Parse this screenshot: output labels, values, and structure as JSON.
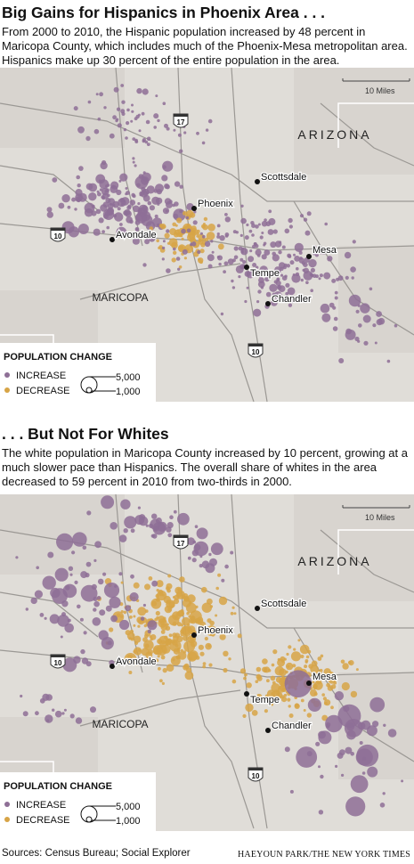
{
  "sections": [
    {
      "title": "Big Gains for Hispanics in Phoenix Area . . .",
      "description": "From 2000 to 2010, the Hispanic population increased by 48 percent in Maricopa County, which includes much of the Phoenix-Mesa metropolitan area. Hispanics make up 30 percent of the entire population in the area.",
      "map": {
        "scale_label": "10 Miles",
        "region_label": "ARIZONA",
        "county_label": "MARICOPA",
        "cities": [
          "Scottsdale",
          "Phoenix",
          "Avondale",
          "Mesa",
          "Tempe",
          "Chandler"
        ],
        "highways": [
          "17",
          "10",
          "10"
        ],
        "legend": {
          "title": "POPULATION CHANGE",
          "items": [
            "INCREASE",
            "DECREASE"
          ],
          "sizes": [
            "5,000",
            "1,000"
          ]
        }
      }
    },
    {
      "title": ". . . But Not For Whites",
      "description": "The white population in Maricopa County increased by 10 percent, growing at a much slower pace than Hispanics. The overall share of whites in the area decreased to 59 percent in 2010 from two-thirds in 2000.",
      "map": {
        "scale_label": "10 Miles",
        "region_label": "ARIZONA",
        "county_label": "MARICOPA",
        "cities": [
          "Scottsdale",
          "Phoenix",
          "Avondale",
          "Mesa",
          "Tempe",
          "Chandler"
        ],
        "highways": [
          "17",
          "10",
          "10"
        ],
        "legend": {
          "title": "POPULATION CHANGE",
          "items": [
            "INCREASE",
            "DECREASE"
          ],
          "sizes": [
            "5,000",
            "1,000"
          ]
        }
      }
    }
  ],
  "footer": {
    "source": "Sources: Census Bureau; Social Explorer",
    "credit": "HAEYOUN PARK/THE NEW YORK TIMES"
  }
}
